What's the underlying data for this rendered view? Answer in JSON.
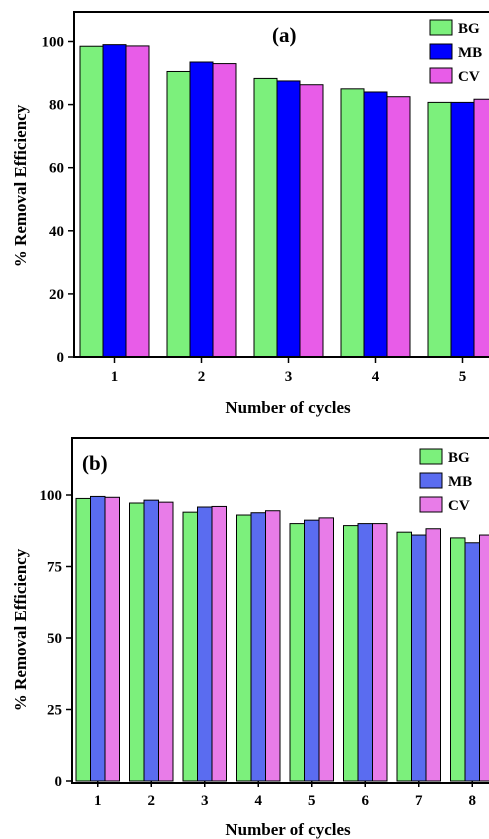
{
  "chart_data": [
    {
      "type": "bar",
      "panel_label": "(a)",
      "categories": [
        "1",
        "2",
        "3",
        "4",
        "5"
      ],
      "series": [
        {
          "name": "BG",
          "color": "#7cf07c",
          "values": [
            98.5,
            90.5,
            88.3,
            85.0,
            80.7
          ]
        },
        {
          "name": "MB",
          "color": "#0000ff",
          "values": [
            99.0,
            93.5,
            87.5,
            84.0,
            80.7
          ]
        },
        {
          "name": "CV",
          "color": "#e85ce8",
          "values": [
            98.6,
            93.0,
            86.3,
            82.5,
            81.7
          ]
        }
      ],
      "xlabel": "Number of cycles",
      "ylabel": "% Removal Efficiency",
      "ylim": [
        0,
        110
      ],
      "yticks": [
        "0",
        "20",
        "40",
        "60",
        "80",
        "100"
      ],
      "legend": "top-right",
      "grid": false
    },
    {
      "type": "bar",
      "panel_label": "(b)",
      "categories": [
        "1",
        "2",
        "3",
        "4",
        "5",
        "6",
        "7",
        "8"
      ],
      "series": [
        {
          "name": "BG",
          "color": "#7cf07c",
          "values": [
            98.8,
            97.2,
            94.0,
            93.0,
            90.0,
            89.3,
            87.0,
            85.0
          ]
        },
        {
          "name": "MB",
          "color": "#5a6cf0",
          "values": [
            99.5,
            98.2,
            95.8,
            93.8,
            91.2,
            90.0,
            86.0,
            83.3
          ]
        },
        {
          "name": "CV",
          "color": "#e87ce8",
          "values": [
            99.2,
            97.5,
            96.0,
            94.5,
            92.0,
            90.0,
            88.2,
            86.0
          ]
        }
      ],
      "xlabel": "Number of cycles",
      "ylabel": "% Removal Efficiency",
      "ylim": [
        0,
        120
      ],
      "yticks": [
        "0",
        "25",
        "50",
        "75",
        "100"
      ],
      "legend": "top-right",
      "grid": false
    }
  ]
}
